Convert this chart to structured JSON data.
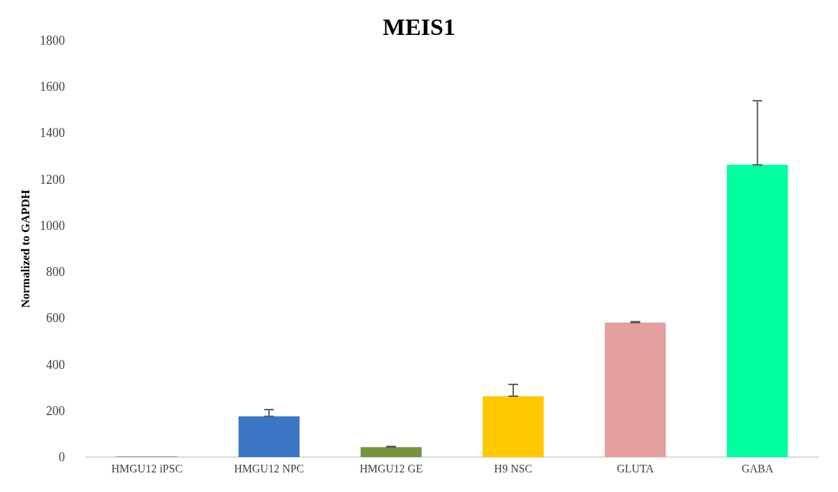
{
  "chart_data": {
    "type": "bar",
    "title": "MEIS1",
    "ylabel": "Normalized to GAPDH",
    "categories": [
      "HMGU12 iPSC",
      "HMGU12 NPC",
      "HMGU12 GE",
      "H9 NSC",
      "GLUTA",
      "GABA"
    ],
    "values": [
      2,
      176,
      43,
      263,
      581,
      1263
    ],
    "colors": [
      "#4f81bd",
      "#3b76c4",
      "#77933c",
      "#ffc800",
      "#e3a09e",
      "#00ff9f"
    ],
    "errors": [
      null,
      [
        176,
        205
      ],
      [
        43,
        46
      ],
      [
        263,
        314
      ],
      [
        581,
        585
      ],
      [
        1263,
        1540
      ]
    ],
    "ylim": [
      0,
      1800
    ],
    "yticks": [
      0,
      200,
      400,
      600,
      800,
      1000,
      1200,
      1400,
      1600,
      1800
    ],
    "grid": false
  }
}
